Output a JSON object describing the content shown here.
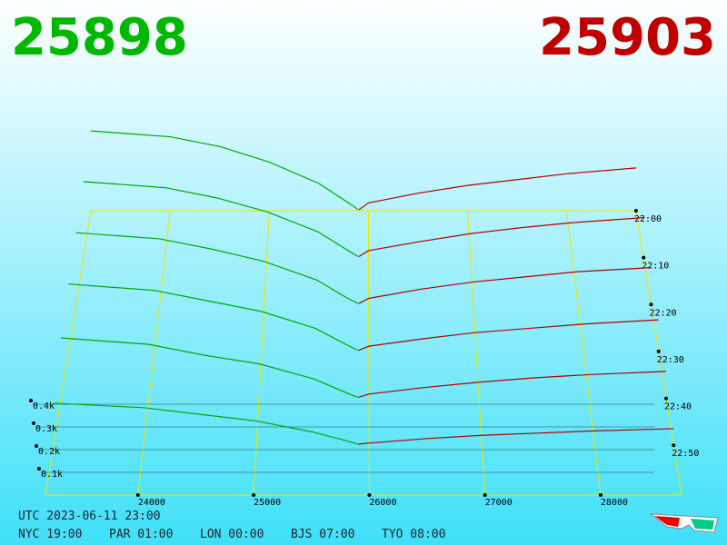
{
  "chart_data": {
    "type": "depth3d",
    "bid_price": "25898",
    "ask_price": "25903",
    "bid_color": "#00a800",
    "ask_color": "#b00000",
    "grid_color": "#e8e800",
    "xlim": [
      23200,
      28700
    ],
    "xticks": [
      24000,
      25000,
      26000,
      27000,
      28000
    ],
    "ylim": [
      0,
      440
    ],
    "yticks": [
      {
        "value": 100,
        "label": "0.1k"
      },
      {
        "value": 200,
        "label": "0.2k"
      },
      {
        "value": 300,
        "label": "0.3k"
      },
      {
        "value": 400,
        "label": "0.4k"
      }
    ],
    "times": [
      "22:00",
      "22:10",
      "22:20",
      "22:30",
      "22:40",
      "22:50"
    ],
    "bid_prices": [
      25898,
      25800,
      25500,
      25000,
      24500,
      24000,
      23200
    ],
    "ask_prices": [
      25903,
      26000,
      26500,
      27000,
      27500,
      28000,
      28700
    ],
    "bid_depth": [
      [
        5,
        40,
        140,
        250,
        330,
        380,
        410
      ],
      [
        5,
        35,
        130,
        230,
        300,
        350,
        380
      ],
      [
        5,
        30,
        120,
        210,
        270,
        320,
        350
      ],
      [
        5,
        30,
        110,
        190,
        240,
        290,
        320
      ],
      [
        5,
        25,
        90,
        160,
        200,
        250,
        280
      ],
      [
        5,
        20,
        60,
        110,
        140,
        170,
        190
      ]
    ],
    "ask_depth": [
      [
        5,
        40,
        90,
        130,
        160,
        190,
        220
      ],
      [
        5,
        35,
        80,
        120,
        150,
        175,
        200
      ],
      [
        5,
        30,
        75,
        110,
        135,
        160,
        180
      ],
      [
        5,
        25,
        60,
        90,
        110,
        130,
        150
      ],
      [
        5,
        20,
        50,
        75,
        95,
        110,
        125
      ],
      [
        5,
        10,
        30,
        45,
        55,
        65,
        75
      ]
    ],
    "footer": {
      "utc": "UTC 2023-06-11 23:00",
      "zones": [
        "NYC 19:00",
        "PAR 01:00",
        "LON 00:00",
        "BJS 07:00",
        "TYO 08:00"
      ]
    }
  }
}
